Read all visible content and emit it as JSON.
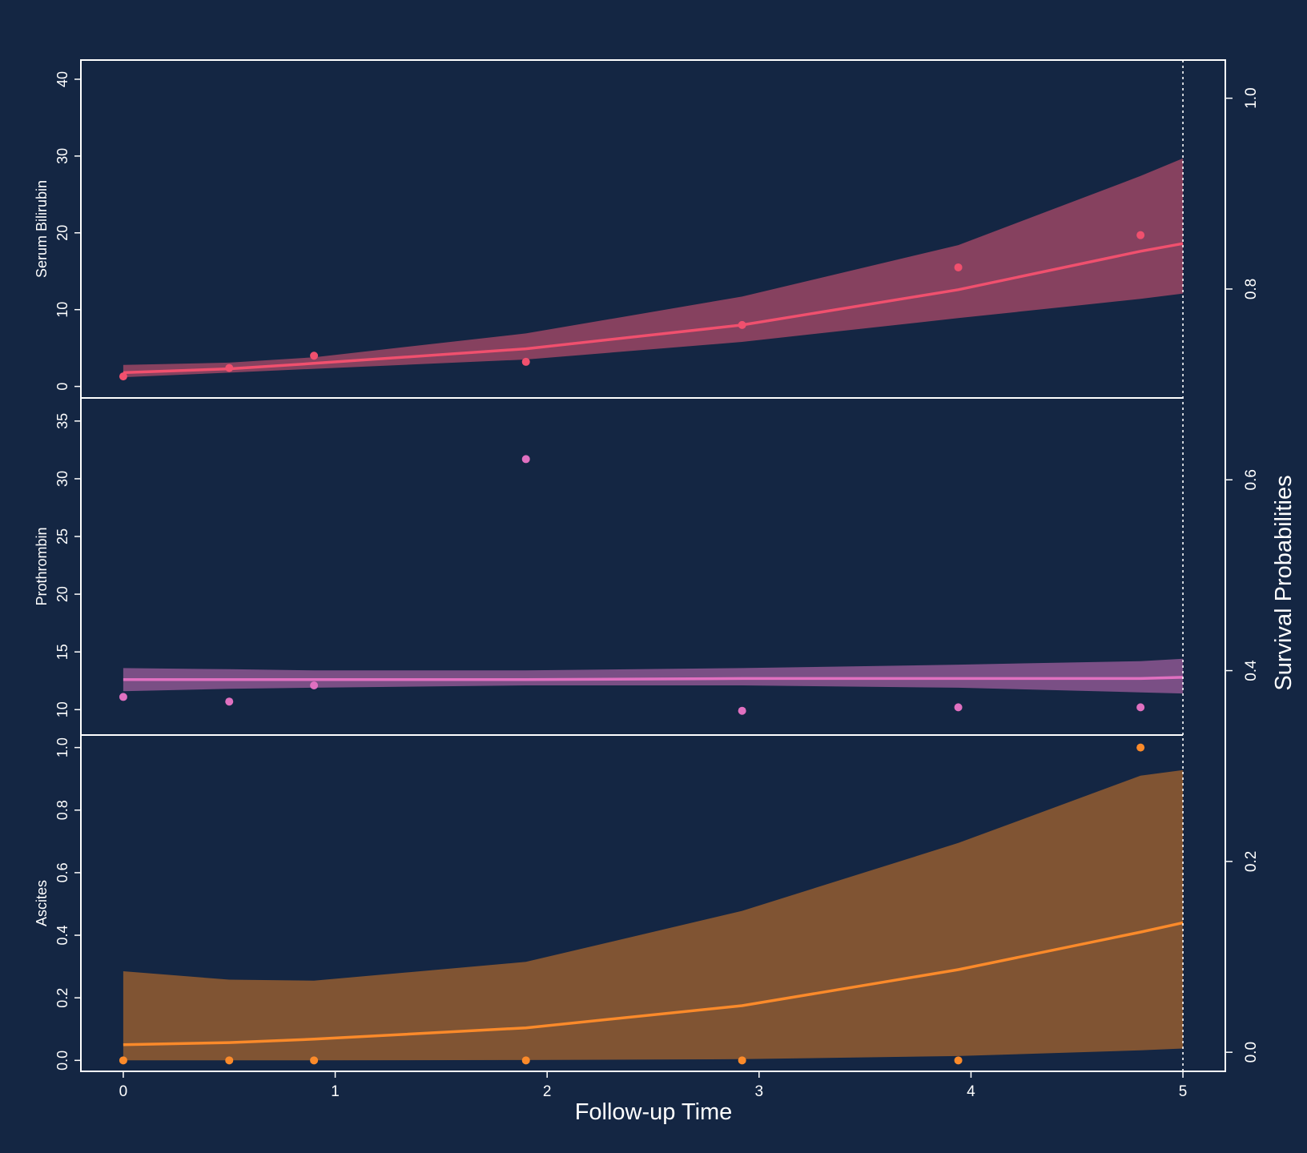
{
  "colors": {
    "background": "#142643",
    "frame": "#ffffff",
    "bilirubin": "#f0506e",
    "bilirubin_band": "#86415f",
    "prothrombin": "#e070c0",
    "prothrombin_band": "#7a4f85",
    "ascites": "#fb8a2a",
    "ascites_band": "#805433"
  },
  "chart_data": {
    "type": "line",
    "xlabel": "Follow-up Time",
    "y2label": "Survival Probabilities",
    "xlim": [
      -0.2,
      5.2
    ],
    "x_ticks": [
      "0",
      "1",
      "2",
      "3",
      "4",
      "5"
    ],
    "y2_ticks": [
      "0.0",
      "0.2",
      "0.4",
      "0.6",
      "0.8",
      "1.0"
    ],
    "y2lim": [
      -0.02,
      1.04
    ],
    "vline_x": 5.0,
    "panels": [
      {
        "name": "Serum Bilirubin",
        "ylabel": "Serum Bilirubin",
        "ylim": [
          -1.5,
          42.5
        ],
        "y_ticks": [
          "0",
          "10",
          "20",
          "30",
          "40"
        ],
        "fit": {
          "x": [
            0,
            0.5,
            0.9,
            1.9,
            2.92,
            3.94,
            4.8,
            5.0
          ],
          "y": [
            1.8,
            2.3,
            3.0,
            4.9,
            8.0,
            12.6,
            17.6,
            18.6
          ],
          "lower": [
            1.2,
            1.8,
            2.3,
            3.5,
            5.8,
            8.9,
            11.4,
            12.1
          ],
          "upper": [
            2.8,
            3.1,
            3.8,
            6.9,
            11.7,
            18.4,
            27.4,
            29.7
          ]
        },
        "points": {
          "x": [
            0,
            0.5,
            0.9,
            1.9,
            2.92,
            3.94,
            4.8
          ],
          "y": [
            1.3,
            2.4,
            4.0,
            3.2,
            8.0,
            15.5,
            19.7
          ]
        }
      },
      {
        "name": "Prothrombin",
        "ylabel": "Prothrombin",
        "ylim": [
          7.8,
          37.0
        ],
        "y_ticks": [
          "10",
          "15",
          "20",
          "25",
          "30",
          "35"
        ],
        "fit": {
          "x": [
            0,
            0.5,
            0.9,
            1.9,
            2.92,
            3.94,
            4.8,
            5.0
          ],
          "y": [
            12.6,
            12.6,
            12.6,
            12.6,
            12.7,
            12.7,
            12.7,
            12.8
          ],
          "lower": [
            11.6,
            11.8,
            11.9,
            12.1,
            12.1,
            11.9,
            11.5,
            11.4
          ],
          "upper": [
            13.6,
            13.5,
            13.4,
            13.4,
            13.6,
            13.9,
            14.2,
            14.4
          ]
        },
        "points": {
          "x": [
            0,
            0.5,
            0.9,
            1.9,
            2.92,
            3.94,
            4.8
          ],
          "y": [
            11.1,
            10.7,
            12.1,
            31.7,
            9.9,
            10.2,
            10.2
          ]
        }
      },
      {
        "name": "Ascites",
        "ylabel": "Ascites",
        "ylim": [
          -0.035,
          1.04
        ],
        "y_ticks": [
          "0.0",
          "0.2",
          "0.4",
          "0.6",
          "0.8",
          "1.0"
        ],
        "fit": {
          "x": [
            0,
            0.5,
            0.9,
            1.9,
            2.92,
            3.94,
            4.8,
            5.0
          ],
          "y": [
            0.05,
            0.057,
            0.068,
            0.104,
            0.175,
            0.29,
            0.41,
            0.44
          ],
          "lower": [
            0.0,
            0.0,
            0.0,
            0.001,
            0.004,
            0.014,
            0.032,
            0.038
          ],
          "upper": [
            0.285,
            0.258,
            0.255,
            0.315,
            0.478,
            0.695,
            0.91,
            0.928
          ]
        },
        "points": {
          "x": [
            0,
            0.5,
            0.9,
            1.9,
            2.92,
            3.94,
            4.8
          ],
          "y": [
            0,
            0,
            0,
            0,
            0,
            0,
            1
          ]
        }
      }
    ]
  }
}
